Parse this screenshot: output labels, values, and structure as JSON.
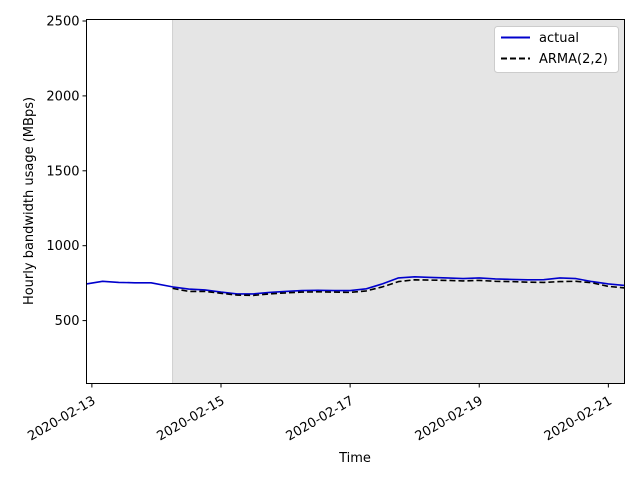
{
  "chart_data": {
    "type": "line",
    "title": "",
    "xlabel": "Time",
    "ylabel": "Hourly bandwidth usage (MBps)",
    "xlim": [
      "2020-02-12 22:00",
      "2020-02-21 06:00"
    ],
    "ylim": [
      80,
      2510
    ],
    "x_ticks": [
      "2020-02-13",
      "2020-02-15",
      "2020-02-17",
      "2020-02-19",
      "2020-02-21"
    ],
    "y_ticks": [
      500,
      1000,
      1500,
      2000,
      2500
    ],
    "grid": false,
    "legend_position": "top-right",
    "shaded_region": {
      "start": "2020-02-14 06:00",
      "end": "2020-02-21 06:00",
      "color": "#e5e5e5"
    },
    "series": [
      {
        "name": "actual",
        "color": "#0000cc",
        "style": "solid",
        "x": [
          "2020-02-12 22:00",
          "2020-02-13 04:00",
          "2020-02-13 10:00",
          "2020-02-13 16:00",
          "2020-02-13 22:00",
          "2020-02-14 06:00",
          "2020-02-14 12:00",
          "2020-02-14 18:00",
          "2020-02-15 00:00",
          "2020-02-15 06:00",
          "2020-02-15 12:00",
          "2020-02-15 18:00",
          "2020-02-16 00:00",
          "2020-02-16 06:00",
          "2020-02-16 12:00",
          "2020-02-16 18:00",
          "2020-02-17 00:00",
          "2020-02-17 06:00",
          "2020-02-17 12:00",
          "2020-02-17 18:00",
          "2020-02-18 00:00",
          "2020-02-18 06:00",
          "2020-02-18 12:00",
          "2020-02-18 18:00",
          "2020-02-19 00:00",
          "2020-02-19 06:00",
          "2020-02-19 12:00",
          "2020-02-19 18:00",
          "2020-02-20 00:00",
          "2020-02-20 06:00",
          "2020-02-20 12:00",
          "2020-02-20 18:00",
          "2020-02-21 00:00",
          "2020-02-21 06:00"
        ],
        "y": [
          745,
          762,
          755,
          752,
          752,
          725,
          710,
          705,
          690,
          678,
          678,
          688,
          695,
          700,
          702,
          700,
          700,
          712,
          745,
          785,
          792,
          788,
          785,
          780,
          785,
          778,
          775,
          772,
          773,
          785,
          780,
          760,
          745,
          735
        ]
      },
      {
        "name": "ARMA(2,2)",
        "color": "#000000",
        "style": "dashed",
        "x": [
          "2020-02-14 06:00",
          "2020-02-14 12:00",
          "2020-02-14 18:00",
          "2020-02-15 00:00",
          "2020-02-15 06:00",
          "2020-02-15 12:00",
          "2020-02-15 18:00",
          "2020-02-16 00:00",
          "2020-02-16 06:00",
          "2020-02-16 12:00",
          "2020-02-16 18:00",
          "2020-02-17 00:00",
          "2020-02-17 06:00",
          "2020-02-17 12:00",
          "2020-02-17 18:00",
          "2020-02-18 00:00",
          "2020-02-18 06:00",
          "2020-02-18 12:00",
          "2020-02-18 18:00",
          "2020-02-19 00:00",
          "2020-02-19 06:00",
          "2020-02-19 12:00",
          "2020-02-19 18:00",
          "2020-02-20 00:00",
          "2020-02-20 06:00",
          "2020-02-20 12:00",
          "2020-02-20 18:00",
          "2020-02-21 00:00",
          "2020-02-21 06:00"
        ],
        "y": [
          715,
          695,
          695,
          682,
          670,
          668,
          678,
          685,
          690,
          692,
          690,
          688,
          698,
          725,
          760,
          772,
          770,
          768,
          765,
          768,
          762,
          760,
          756,
          755,
          760,
          762,
          752,
          728,
          718
        ]
      }
    ]
  }
}
